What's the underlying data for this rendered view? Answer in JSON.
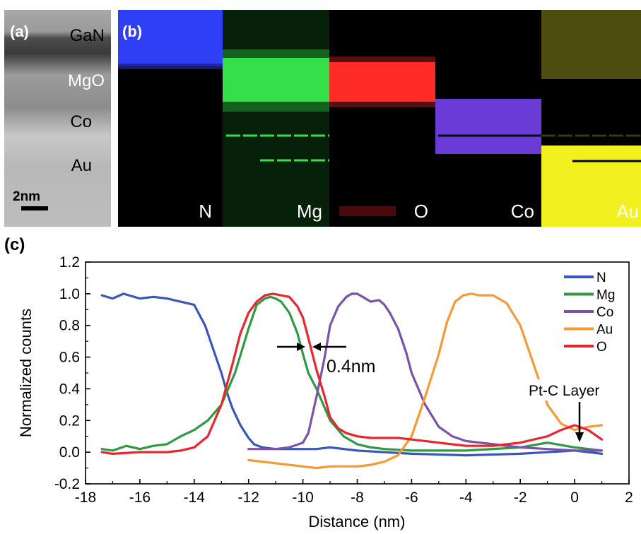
{
  "panel_a": {
    "label": "(a)",
    "layers": [
      "GaN",
      "MgO",
      "Co",
      "Au"
    ],
    "scale_bar": "2nm"
  },
  "panel_b": {
    "label": "(b)",
    "maps": [
      {
        "element": "N",
        "color": "#2f3ff5"
      },
      {
        "element": "Mg",
        "color": "#35e04a"
      },
      {
        "element": "O",
        "color": "#ff2b26"
      },
      {
        "element": "Co",
        "color": "#6a3bd6"
      },
      {
        "element": "Au",
        "color": "#f2f01e"
      }
    ]
  },
  "chart_data": {
    "type": "line",
    "panel_label": "(c)",
    "xlabel": "Distance (nm)",
    "ylabel": "Normalized counts",
    "xlim": [
      -18,
      2
    ],
    "ylim": [
      -0.2,
      1.2
    ],
    "xticks": [
      -18,
      -16,
      -14,
      -12,
      -10,
      -8,
      -6,
      -4,
      -2,
      0,
      2
    ],
    "yticks": [
      -0.2,
      0.0,
      0.2,
      0.4,
      0.6,
      0.8,
      1.0,
      1.2
    ],
    "grid": false,
    "legend_position": "top-right",
    "series": [
      {
        "name": "N",
        "color": "#3a57b8",
        "x": [
          -17.4,
          -17,
          -16.6,
          -16,
          -15.5,
          -15,
          -14.5,
          -14,
          -13.6,
          -13.3,
          -13,
          -12.8,
          -12.6,
          -12.3,
          -12,
          -11.8,
          -11.5,
          -11,
          -10.5,
          -10,
          -9.5,
          -9,
          -8,
          -6,
          -4,
          -2,
          0,
          1
        ],
        "y": [
          0.99,
          0.97,
          1.0,
          0.97,
          0.98,
          0.97,
          0.95,
          0.93,
          0.8,
          0.65,
          0.5,
          0.38,
          0.28,
          0.17,
          0.09,
          0.05,
          0.03,
          0.02,
          0.02,
          0.02,
          0.02,
          0.03,
          0.01,
          -0.01,
          -0.02,
          -0.01,
          0.01,
          -0.01
        ]
      },
      {
        "name": "Mg",
        "color": "#2e9a44",
        "x": [
          -17.4,
          -17,
          -16.5,
          -16,
          -15.5,
          -15,
          -14.5,
          -14,
          -13.5,
          -13,
          -12.5,
          -12,
          -11.7,
          -11.4,
          -11.2,
          -11,
          -10.8,
          -10.5,
          -10.2,
          -10,
          -9.8,
          -9.5,
          -9.2,
          -9,
          -8.5,
          -8,
          -7.5,
          -7,
          -6,
          -4,
          -2,
          -1,
          0,
          1
        ],
        "y": [
          0.02,
          0.01,
          0.04,
          0.02,
          0.04,
          0.05,
          0.1,
          0.14,
          0.2,
          0.3,
          0.5,
          0.78,
          0.93,
          0.97,
          0.98,
          0.97,
          0.95,
          0.88,
          0.75,
          0.62,
          0.5,
          0.4,
          0.28,
          0.2,
          0.1,
          0.05,
          0.03,
          0.02,
          0.01,
          0.01,
          0.03,
          0.06,
          0.03,
          0.01
        ]
      },
      {
        "name": "Co",
        "color": "#7b52ab",
        "x": [
          -12,
          -11.5,
          -11,
          -10.5,
          -10,
          -9.8,
          -9.5,
          -9.2,
          -9,
          -8.7,
          -8.4,
          -8.2,
          -8,
          -7.8,
          -7.5,
          -7.2,
          -7,
          -6.8,
          -6.5,
          -6.2,
          -6,
          -5.5,
          -5,
          -4.5,
          -4,
          -3,
          -2,
          -1,
          0,
          1
        ],
        "y": [
          0.02,
          0.02,
          0.02,
          0.03,
          0.06,
          0.12,
          0.35,
          0.6,
          0.8,
          0.92,
          0.98,
          1.0,
          1.0,
          0.98,
          0.95,
          0.96,
          0.93,
          0.88,
          0.78,
          0.63,
          0.5,
          0.3,
          0.16,
          0.1,
          0.07,
          0.05,
          0.03,
          0.02,
          0.01,
          0.01
        ]
      },
      {
        "name": "Au",
        "color": "#f79a33",
        "x": [
          -12,
          -11.5,
          -11,
          -10.5,
          -10,
          -9.5,
          -9,
          -8.5,
          -8,
          -7.5,
          -7,
          -6.5,
          -6,
          -5.5,
          -5,
          -4.7,
          -4.4,
          -4.1,
          -3.8,
          -3.5,
          -3,
          -2.5,
          -2,
          -1.5,
          -1,
          -0.5,
          0,
          0.5,
          1
        ],
        "y": [
          -0.05,
          -0.06,
          -0.07,
          -0.08,
          -0.09,
          -0.1,
          -0.09,
          -0.09,
          -0.09,
          -0.08,
          -0.06,
          -0.02,
          0.1,
          0.35,
          0.62,
          0.82,
          0.95,
          0.99,
          1.0,
          0.99,
          0.99,
          0.94,
          0.8,
          0.55,
          0.3,
          0.18,
          0.14,
          0.16,
          0.17
        ]
      },
      {
        "name": "O",
        "color": "#e8262c",
        "x": [
          -17.4,
          -17,
          -16,
          -15,
          -14.5,
          -14,
          -13.5,
          -13,
          -12.6,
          -12.3,
          -12,
          -11.7,
          -11.4,
          -11.1,
          -10.8,
          -10.5,
          -10.2,
          -10,
          -9.8,
          -9.5,
          -9.2,
          -9,
          -8.7,
          -8.4,
          -8,
          -7.5,
          -7,
          -6.5,
          -6,
          -5,
          -4,
          -3,
          -2,
          -1,
          -0.5,
          0,
          0.5,
          1
        ],
        "y": [
          0.0,
          -0.01,
          0.0,
          0.0,
          0.01,
          0.03,
          0.1,
          0.3,
          0.55,
          0.75,
          0.88,
          0.95,
          0.99,
          1.0,
          0.99,
          0.98,
          0.92,
          0.85,
          0.72,
          0.52,
          0.35,
          0.22,
          0.15,
          0.12,
          0.1,
          0.09,
          0.09,
          0.09,
          0.08,
          0.06,
          0.04,
          0.04,
          0.06,
          0.1,
          0.14,
          0.17,
          0.14,
          0.08
        ]
      }
    ],
    "annotations": {
      "width_label": "0.4nm",
      "layer_label": "Pt-C Layer"
    }
  }
}
